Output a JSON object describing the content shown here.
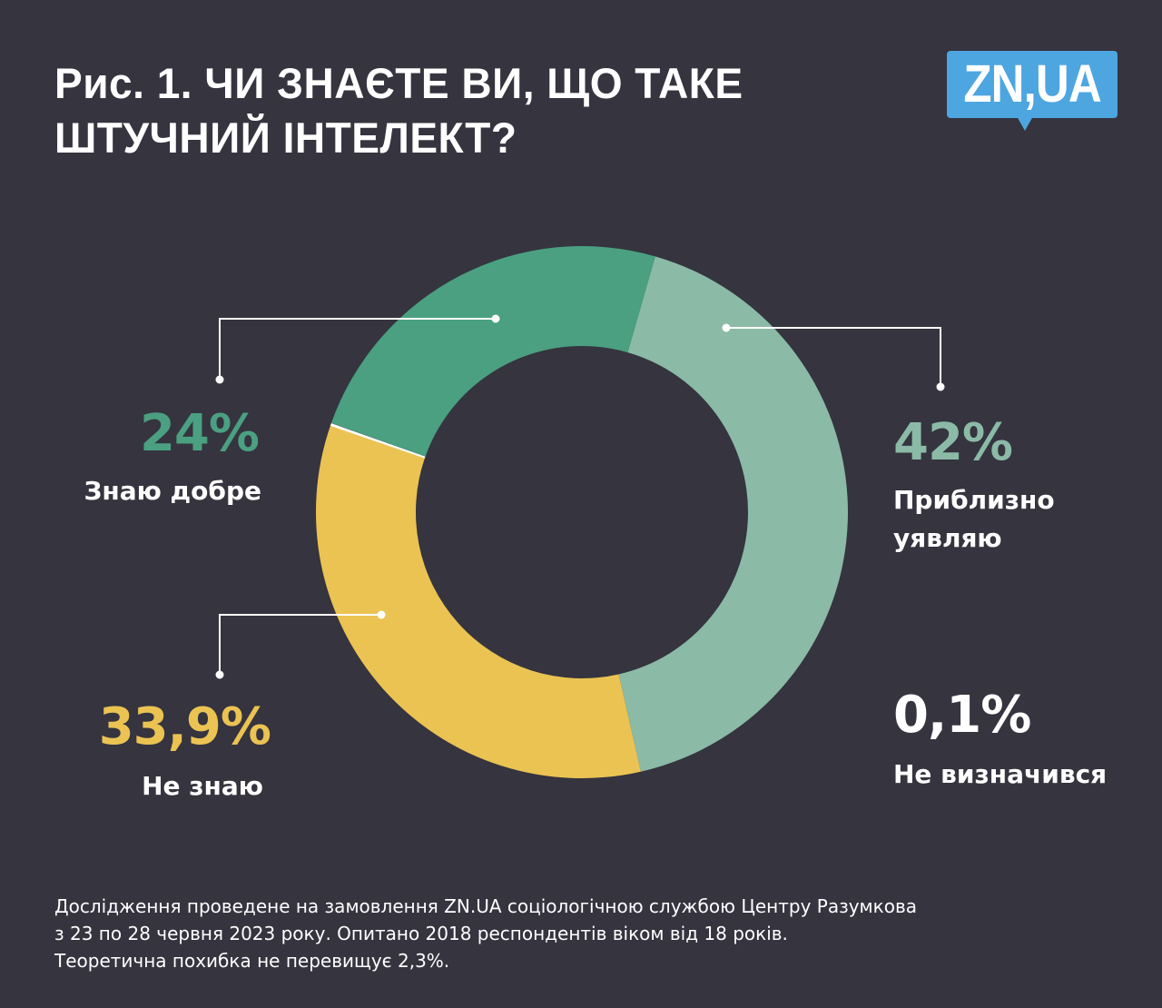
{
  "header": {
    "title_line1": "Рис. 1. ЧИ ЗНАЄТЕ ВИ, ЩО ТАКЕ",
    "title_line2": "ШТУЧНИЙ ІНТЕЛЕКТ?",
    "logo_text": "ZN,UA",
    "logo_color": "#4da6e0"
  },
  "background_color": "#35343f",
  "chart_data": {
    "type": "pie",
    "subtype": "donut",
    "title": "Рис. 1. ЧИ ЗНАЄТЕ ВИ, ЩО ТАКЕ ШТУЧНИЙ ІНТЕЛЕКТ?",
    "categories": [
      "Приблизно уявляю",
      "Не знаю",
      "Не визначився",
      "Знаю добре"
    ],
    "values": [
      42,
      33.9,
      0.1,
      24
    ],
    "unit": "%",
    "colors": [
      "#8bbaa6",
      "#ebc352",
      "#ffffff",
      "#4aa080"
    ],
    "start_angle_deg_clockwise_from_top": 16,
    "legend": "direct labels with leader lines"
  },
  "labels": {
    "good": {
      "value": "24%",
      "text": "Знаю добре",
      "color": "#4aa080"
    },
    "approx": {
      "value": "42%",
      "text_line1": "Приблизно",
      "text_line2": "уявляю",
      "color": "#8bbaa6"
    },
    "dont": {
      "value": "33,9%",
      "text": "Не знаю",
      "color": "#ebc352"
    },
    "undecided": {
      "value": "0,1%",
      "text": "Не визначився",
      "color": "#ffffff"
    }
  },
  "footnote": {
    "line1": "Дослідження проведене на замовлення ZN.UA соціологічною службою Центру Разумкова",
    "line2": "з 23 по 28 червня 2023 року. Опитано 2018 респондентів віком від 18 років.",
    "line3": "Теоретична похибка не перевищує 2,3%."
  }
}
